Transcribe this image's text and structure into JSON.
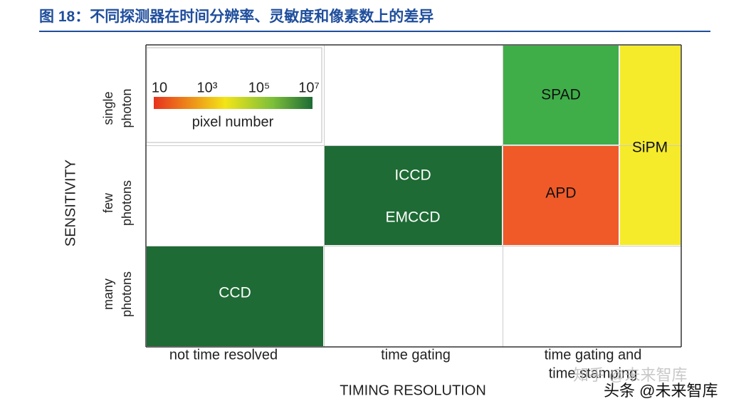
{
  "header": {
    "title": "图 18：不同探测器在时间分辨率、灵敏度和像素数上的差异"
  },
  "y_axis": {
    "label": "SENSITIVITY",
    "rows": [
      [
        "single",
        "photon"
      ],
      [
        "few",
        "photons"
      ],
      [
        "many",
        "photons"
      ]
    ]
  },
  "x_axis": {
    "label": "TIMING RESOLUTION",
    "columns": [
      [
        "not time resolved"
      ],
      [
        "time gating"
      ],
      [
        "time gating and",
        "time stamping"
      ]
    ]
  },
  "cells": [
    {
      "labels": [
        "SPAD"
      ]
    },
    {
      "labels": [
        "SiPM"
      ]
    },
    {
      "labels": [
        "ICCD",
        "EMCCD"
      ]
    },
    {
      "labels": [
        "APD"
      ]
    },
    {
      "labels": [
        "CCD"
      ]
    }
  ],
  "legend": {
    "ticks": [
      "10",
      "10³",
      "10⁵",
      "10⁷"
    ],
    "label": "pixel number"
  },
  "watermarks": [
    "知乎 @未来智库",
    "头条 @未来智库"
  ]
}
